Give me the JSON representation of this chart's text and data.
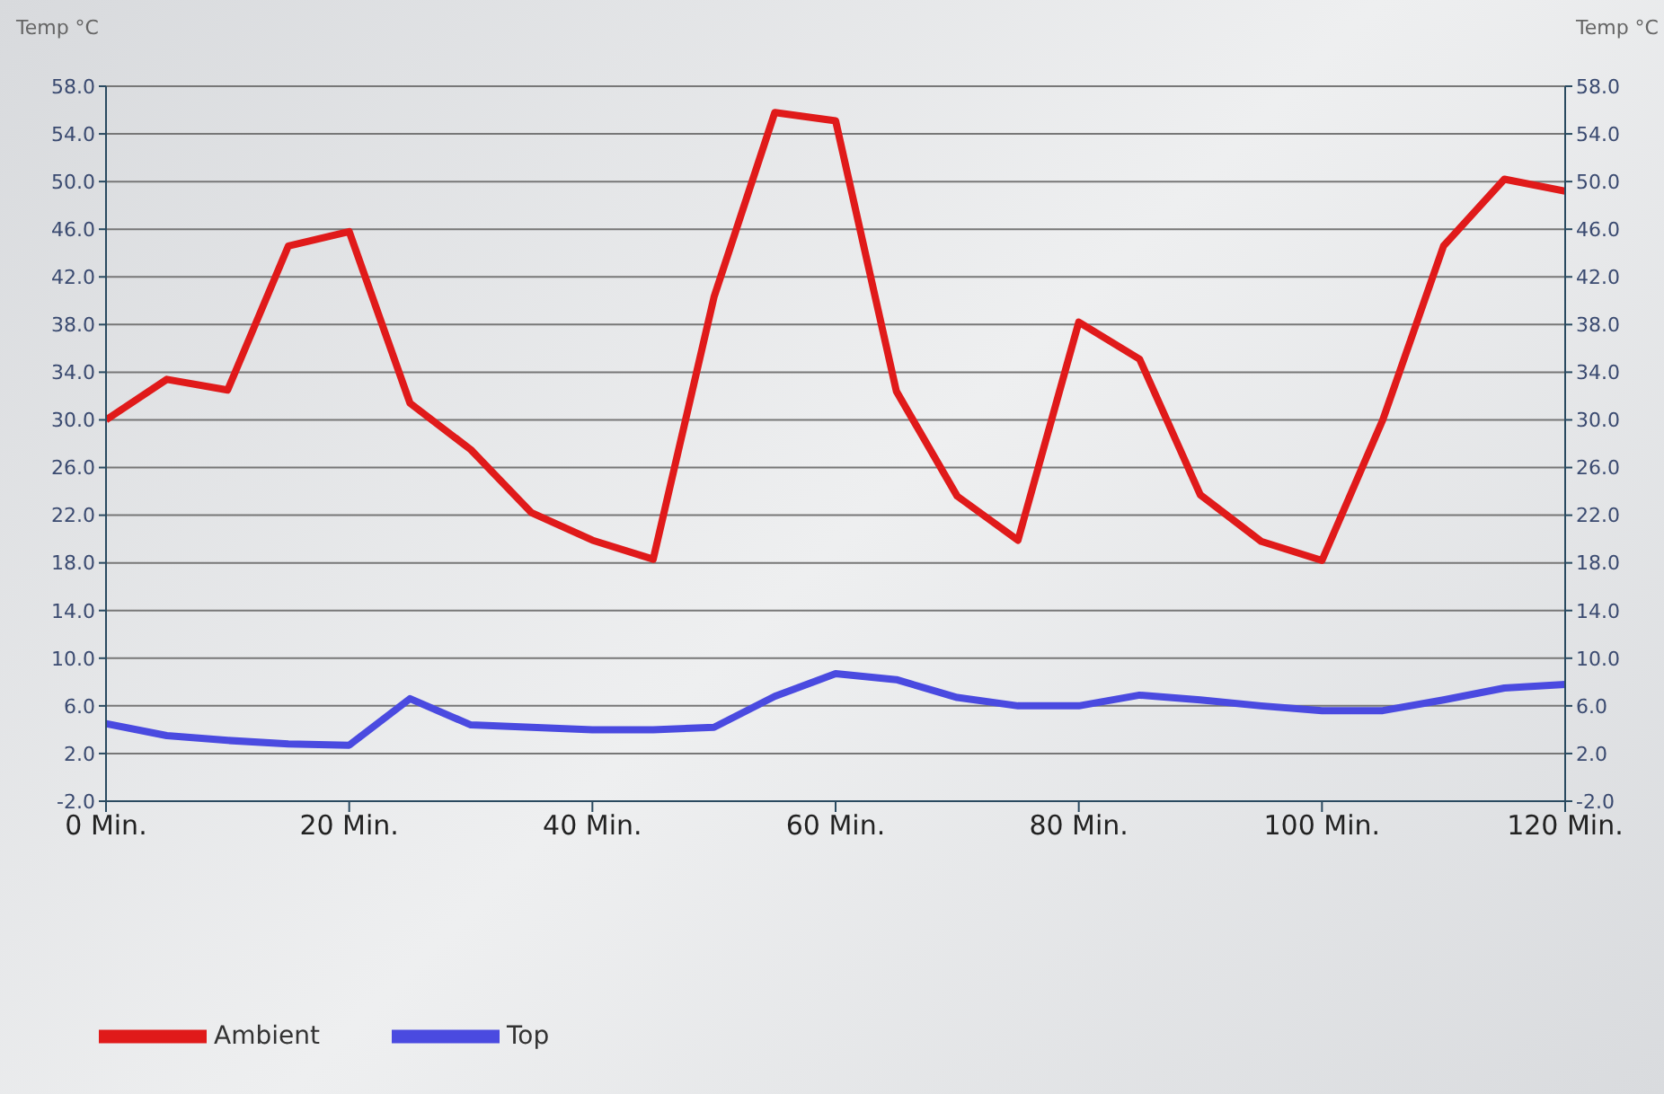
{
  "chart_data": {
    "type": "line",
    "ylabel": "Temp °C",
    "y2label": "Temp °C",
    "x": [
      0,
      5,
      10,
      15,
      20,
      25,
      30,
      35,
      40,
      45,
      50,
      55,
      60,
      65,
      70,
      75,
      80,
      85,
      90,
      95,
      100,
      105,
      110,
      115,
      120
    ],
    "series": [
      {
        "name": "Ambient",
        "color": "#e01a1a",
        "values": [
          30,
          33.4,
          32.5,
          44.6,
          45.8,
          31.4,
          27.5,
          22.2,
          19.9,
          18.3,
          40.3,
          55.8,
          55.1,
          32.4,
          23.6,
          19.9,
          38.2,
          35.1,
          23.7,
          19.8,
          18.2,
          30.0,
          44.6,
          50.2,
          49.2
        ]
      },
      {
        "name": "Top",
        "color": "#4a4ae0",
        "values": [
          4.5,
          3.5,
          3.1,
          2.8,
          2.7,
          6.6,
          4.4,
          4.2,
          4.0,
          4.0,
          4.2,
          6.8,
          8.7,
          8.2,
          6.7,
          6.0,
          6.0,
          6.9,
          6.5,
          6.0,
          5.6,
          5.6,
          6.5,
          7.5,
          7.8
        ]
      }
    ],
    "xlim": [
      0,
      120
    ],
    "xticks": [
      {
        "value": 0,
        "label": "0 Min."
      },
      {
        "value": 20,
        "label": "20 Min."
      },
      {
        "value": 40,
        "label": "40 Min."
      },
      {
        "value": 60,
        "label": "60 Min."
      },
      {
        "value": 80,
        "label": "80 Min."
      },
      {
        "value": 100,
        "label": "100 Min."
      },
      {
        "value": 120,
        "label": "120 Min."
      }
    ],
    "ylim": [
      -2,
      58
    ],
    "yticks": [
      {
        "value": -2,
        "label": "-2.0"
      },
      {
        "value": 2,
        "label": "2.0"
      },
      {
        "value": 6,
        "label": "6.0"
      },
      {
        "value": 10,
        "label": "10.0"
      },
      {
        "value": 14,
        "label": "14.0"
      },
      {
        "value": 18,
        "label": "18.0"
      },
      {
        "value": 22,
        "label": "22.0"
      },
      {
        "value": 26,
        "label": "26.0"
      },
      {
        "value": 30,
        "label": "30.0"
      },
      {
        "value": 34,
        "label": "34.0"
      },
      {
        "value": 38,
        "label": "38.0"
      },
      {
        "value": 42,
        "label": "42.0"
      },
      {
        "value": 46,
        "label": "46.0"
      },
      {
        "value": 50,
        "label": "50.0"
      },
      {
        "value": 54,
        "label": "54.0"
      },
      {
        "value": 58,
        "label": "58.0"
      }
    ],
    "y2lim": [
      -2,
      58
    ],
    "y2ticks": [
      {
        "value": -2,
        "label": "-2.0"
      },
      {
        "value": 2,
        "label": "2.0"
      },
      {
        "value": 6,
        "label": "6.0"
      },
      {
        "value": 10,
        "label": "10.0"
      },
      {
        "value": 14,
        "label": "14.0"
      },
      {
        "value": 18,
        "label": "18.0"
      },
      {
        "value": 22,
        "label": "22.0"
      },
      {
        "value": 26,
        "label": "26.0"
      },
      {
        "value": 30,
        "label": "30.0"
      },
      {
        "value": 34,
        "label": "34.0"
      },
      {
        "value": 38,
        "label": "38.0"
      },
      {
        "value": 42,
        "label": "42.0"
      },
      {
        "value": 46,
        "label": "46.0"
      },
      {
        "value": 50,
        "label": "50.0"
      },
      {
        "value": 54,
        "label": "54.0"
      },
      {
        "value": 58,
        "label": "58.0"
      }
    ],
    "grid": "y",
    "legend": "bottom left",
    "marker": "none",
    "line_style": "solid"
  }
}
